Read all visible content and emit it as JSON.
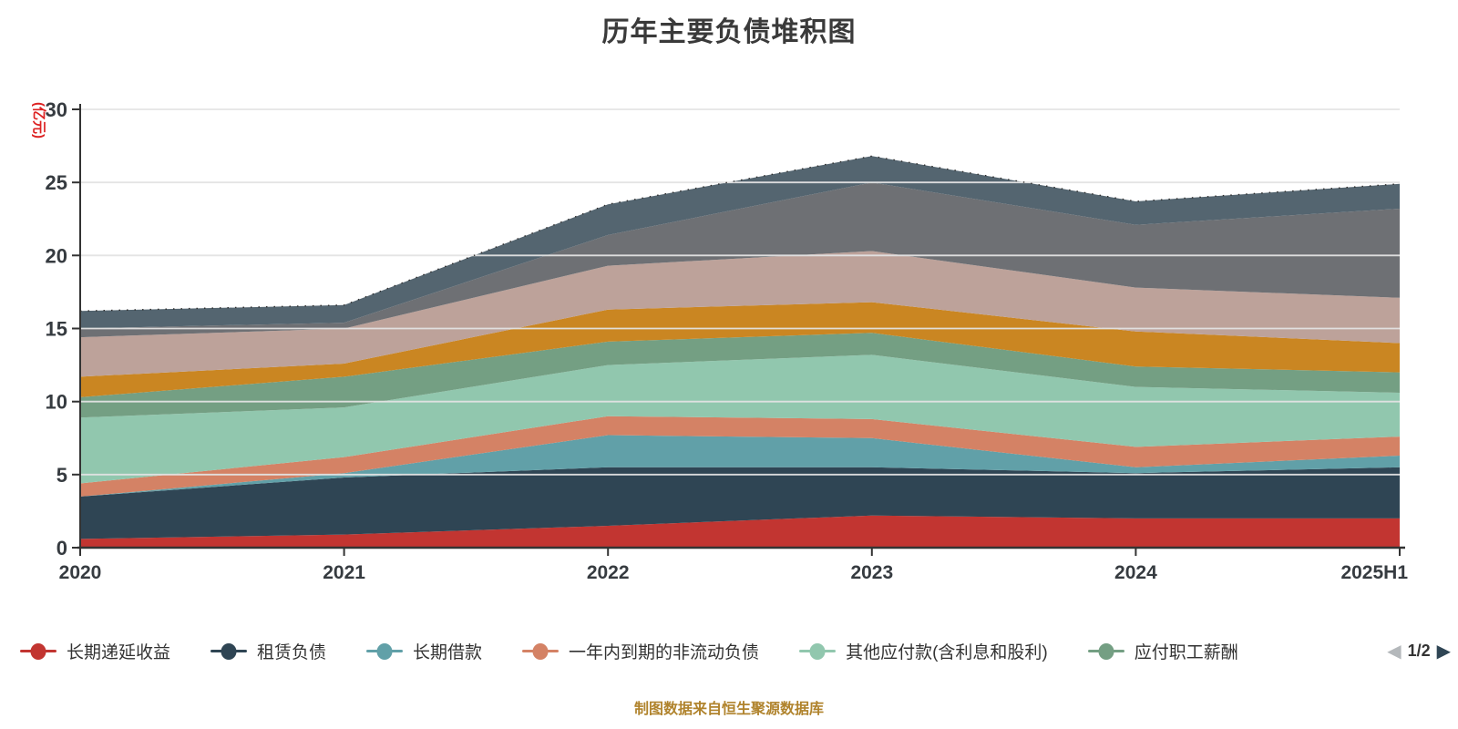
{
  "title": "历年主要负债堆积图",
  "footer": {
    "note": "制图数据来自恒生聚源数据库",
    "color": "#b0832c"
  },
  "y_axis": {
    "name": "(亿元)",
    "name_color": "#dd2222",
    "min": 0,
    "max": 30,
    "interval": 5,
    "tick_labels": [
      "0",
      "5",
      "10",
      "15",
      "20",
      "25",
      "30"
    ],
    "label_color": "#363b40"
  },
  "x_axis": {
    "categories": [
      "2020",
      "2021",
      "2022",
      "2023",
      "2024",
      "2025H1"
    ],
    "label_color": "#363b40"
  },
  "legend": {
    "items": [
      {
        "label": "长期递延收益",
        "color": "#c23531"
      },
      {
        "label": "租赁负债",
        "color": "#2f4554"
      },
      {
        "label": "长期借款",
        "color": "#61a0a8"
      },
      {
        "label": "一年内到期的非流动负债",
        "color": "#d48265"
      },
      {
        "label": "其他应付款(含利息和股利)",
        "color": "#91c7ae"
      },
      {
        "label": "应付职工薪酬",
        "color": "#749f83"
      }
    ],
    "pagination": {
      "prev_arrow": "◀",
      "page": "1/2",
      "next_arrow": "▶"
    }
  },
  "chart_data": {
    "type": "area",
    "stacked": true,
    "unit": "亿元",
    "x": [
      "2020",
      "2021",
      "2022",
      "2023",
      "2024",
      "2025H1"
    ],
    "ylim": [
      0,
      30
    ],
    "grid": true,
    "gridline_color": "#e3e3e3",
    "axis_color": "#333333",
    "series": [
      {
        "label": "长期递延收益",
        "color": "#c23531",
        "values": [
          0.6,
          0.9,
          1.5,
          2.2,
          2.0,
          2.0
        ]
      },
      {
        "label": "租赁负债",
        "color": "#2f4554",
        "values": [
          2.9,
          3.9,
          4.0,
          3.3,
          3.1,
          3.5
        ]
      },
      {
        "label": "长期借款",
        "color": "#61a0a8",
        "values": [
          0.0,
          0.3,
          2.2,
          2.0,
          0.4,
          0.8
        ]
      },
      {
        "label": "一年内到期的非流动负债",
        "color": "#d48265",
        "values": [
          0.9,
          1.1,
          1.3,
          1.3,
          1.4,
          1.3
        ]
      },
      {
        "label": "其他应付款(含利息和股利)",
        "color": "#91c7ae",
        "values": [
          4.5,
          3.4,
          3.5,
          4.4,
          4.1,
          3.0
        ]
      },
      {
        "label": "应付职工薪酬",
        "color": "#749f83",
        "values": [
          1.4,
          2.1,
          1.6,
          1.5,
          1.4,
          1.4
        ]
      },
      {
        "label": "",
        "color": "#ca8622",
        "values": [
          1.4,
          0.9,
          2.2,
          2.1,
          2.4,
          2.0
        ]
      },
      {
        "label": "",
        "color": "#bda29a",
        "values": [
          2.7,
          2.4,
          3.0,
          3.5,
          3.0,
          3.1
        ]
      },
      {
        "label": "",
        "color": "#6e7074",
        "values": [
          0.6,
          0.4,
          2.1,
          4.7,
          4.3,
          6.1
        ]
      },
      {
        "label": "",
        "color": "#546570",
        "values": [
          1.2,
          1.2,
          2.1,
          1.8,
          1.6,
          1.7
        ]
      }
    ],
    "stack_totals": [
      16.2,
      16.6,
      23.5,
      26.8,
      23.7,
      24.9
    ]
  }
}
